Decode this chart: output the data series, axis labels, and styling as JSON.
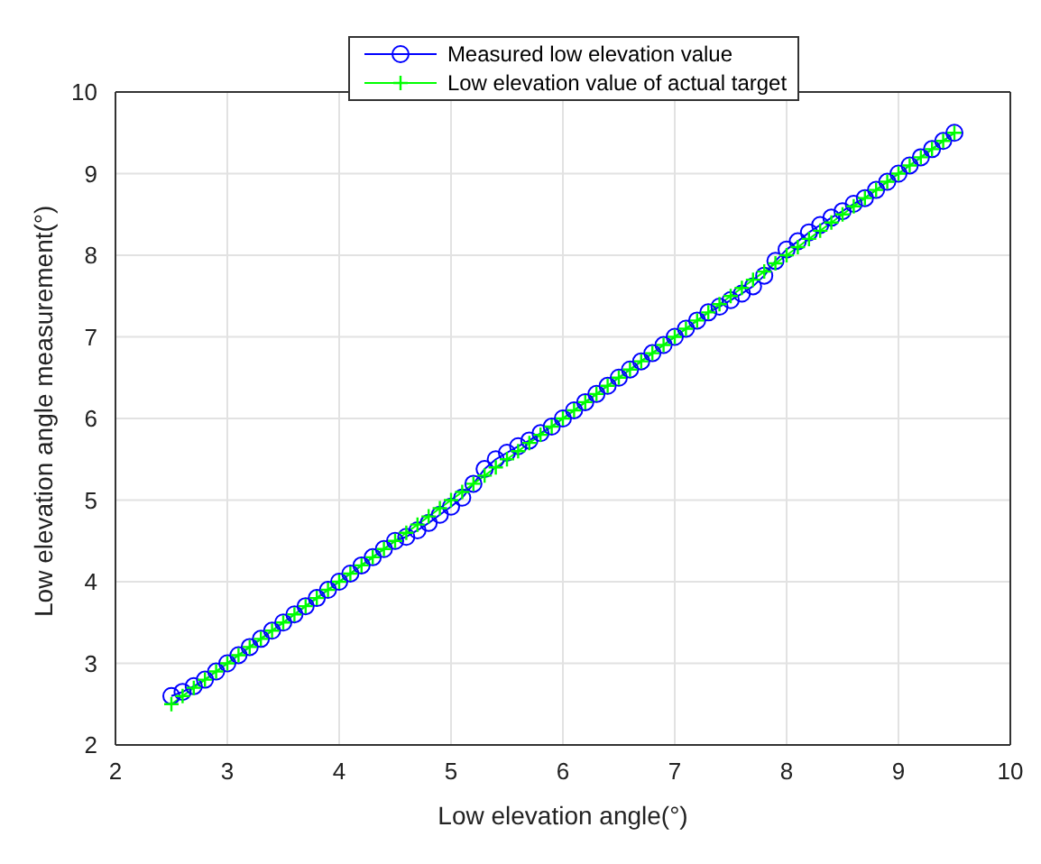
{
  "chart_data": {
    "type": "line",
    "xlabel": "Low elevation angle(°)",
    "ylabel": "Low elevation angle measurement(°)",
    "x": [
      2.5,
      2.6,
      2.7,
      2.8,
      2.9,
      3.0,
      3.1,
      3.2,
      3.3,
      3.4,
      3.5,
      3.6,
      3.7,
      3.8,
      3.9,
      4.0,
      4.1,
      4.2,
      4.3,
      4.4,
      4.5,
      4.6,
      4.7,
      4.8,
      4.9,
      5.0,
      5.1,
      5.2,
      5.3,
      5.4,
      5.5,
      5.6,
      5.7,
      5.8,
      5.9,
      6.0,
      6.1,
      6.2,
      6.3,
      6.4,
      6.5,
      6.6,
      6.7,
      6.8,
      6.9,
      7.0,
      7.1,
      7.2,
      7.3,
      7.4,
      7.5,
      7.6,
      7.7,
      7.8,
      7.9,
      8.0,
      8.1,
      8.2,
      8.3,
      8.4,
      8.5,
      8.6,
      8.7,
      8.8,
      8.9,
      9.0,
      9.1,
      9.2,
      9.3,
      9.4,
      9.5
    ],
    "series": [
      {
        "name": "Measured low elevation value",
        "color": "#0000ff",
        "marker": "circle",
        "values": [
          2.6,
          2.65,
          2.72,
          2.8,
          2.9,
          3.0,
          3.1,
          3.2,
          3.3,
          3.4,
          3.5,
          3.6,
          3.7,
          3.8,
          3.9,
          4.0,
          4.1,
          4.2,
          4.3,
          4.4,
          4.5,
          4.55,
          4.63,
          4.72,
          4.82,
          4.92,
          5.03,
          5.2,
          5.38,
          5.5,
          5.58,
          5.66,
          5.73,
          5.82,
          5.9,
          6.0,
          6.1,
          6.2,
          6.3,
          6.4,
          6.5,
          6.6,
          6.7,
          6.8,
          6.9,
          7.0,
          7.1,
          7.2,
          7.3,
          7.37,
          7.45,
          7.53,
          7.62,
          7.75,
          7.93,
          8.07,
          8.17,
          8.28,
          8.37,
          8.46,
          8.54,
          8.63,
          8.7,
          8.8,
          8.9,
          9.0,
          9.1,
          9.2,
          9.3,
          9.4,
          9.5
        ]
      },
      {
        "name": "Low elevation value of actual target",
        "color": "#00ff00",
        "marker": "cross",
        "values": [
          2.5,
          2.6,
          2.7,
          2.8,
          2.9,
          3.0,
          3.1,
          3.2,
          3.3,
          3.4,
          3.5,
          3.6,
          3.7,
          3.8,
          3.9,
          4.0,
          4.1,
          4.2,
          4.3,
          4.4,
          4.5,
          4.6,
          4.7,
          4.8,
          4.9,
          5.0,
          5.1,
          5.2,
          5.3,
          5.4,
          5.5,
          5.6,
          5.7,
          5.8,
          5.9,
          6.0,
          6.1,
          6.2,
          6.3,
          6.4,
          6.5,
          6.6,
          6.7,
          6.8,
          6.9,
          7.0,
          7.1,
          7.2,
          7.3,
          7.4,
          7.5,
          7.6,
          7.7,
          7.8,
          7.9,
          8.0,
          8.1,
          8.2,
          8.3,
          8.4,
          8.5,
          8.6,
          8.7,
          8.8,
          8.9,
          9.0,
          9.1,
          9.2,
          9.3,
          9.4,
          9.5
        ]
      }
    ],
    "xlim": [
      2,
      10
    ],
    "xticks": [
      2,
      3,
      4,
      5,
      6,
      7,
      8,
      9,
      10
    ],
    "ylim": [
      2,
      10
    ],
    "yticks": [
      2,
      3,
      4,
      5,
      6,
      7,
      8,
      9,
      10
    ],
    "grid": true,
    "legend": "top"
  }
}
